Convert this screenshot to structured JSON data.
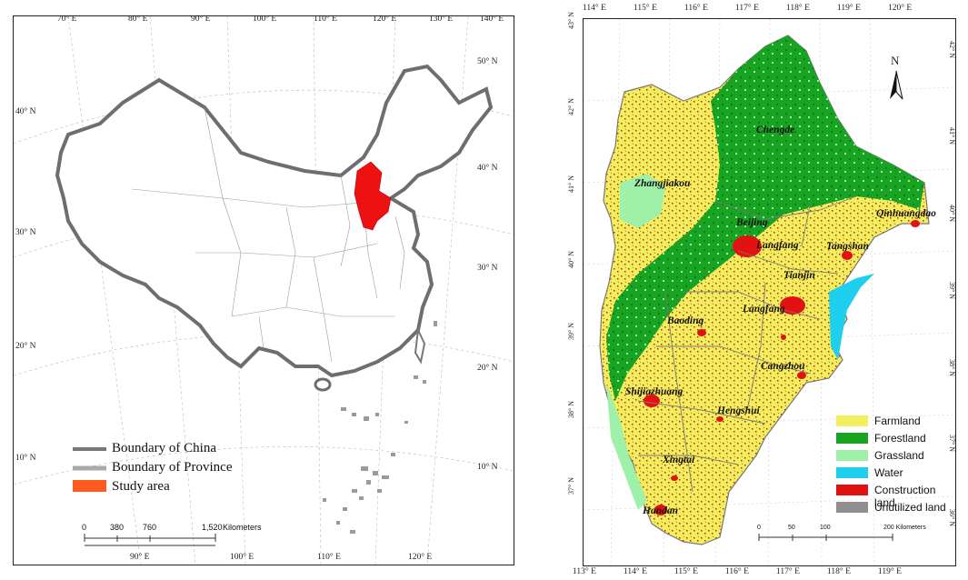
{
  "left_map": {
    "top_lon_ticks": [
      "70° E",
      "80° E",
      "90° E",
      "100° E",
      "110° E",
      "120° E",
      "130° E",
      "140° E"
    ],
    "bottom_lon_ticks": [
      "90° E",
      "100° E",
      "110° E",
      "120° E"
    ],
    "left_lat_ticks": [
      "40° N",
      "30° N",
      "20° N",
      "10° N"
    ],
    "right_lat_ticks": [
      "50° N",
      "40° N",
      "30° N",
      "20° N",
      "10° N"
    ],
    "legend": [
      {
        "label": "Boundary of China",
        "color": "#777777"
      },
      {
        "label": "Boundary of Province",
        "color": "#aaaaaa"
      },
      {
        "label": "Study area",
        "color": "#ff5a1f"
      }
    ],
    "scale": {
      "ticks": [
        "0",
        "380",
        "760",
        "1,520"
      ],
      "unit": "Kilometers"
    },
    "study_area_color": "#ee1111"
  },
  "right_map": {
    "top_lon_ticks": [
      "114° E",
      "115° E",
      "116° E",
      "117° E",
      "118° E",
      "119° E",
      "120° E"
    ],
    "bottom_lon_ticks": [
      "113° E",
      "114° E",
      "115° E",
      "116° E",
      "117° E",
      "118° E",
      "119° E"
    ],
    "left_lat_ticks": [
      "43° N",
      "42° N",
      "41° N",
      "40° N",
      "39° N",
      "38° N",
      "37° N"
    ],
    "right_lat_ticks": [
      "42° N",
      "41° N",
      "40° N",
      "39° N",
      "38° N",
      "37° N",
      "36° N"
    ],
    "north_arrow": "N",
    "cities": [
      "Chengde",
      "Zhangjiakou",
      "Qinhuangdao",
      "Beijing",
      "Langfang",
      "Tangshan",
      "Tianjin",
      "Langfang",
      "Baoding",
      "Cangzhou",
      "Shijiazhuang",
      "Hengshui",
      "Xingtai",
      "Handan"
    ],
    "legend": [
      {
        "label": "Farmland",
        "color": "#f2ef5f"
      },
      {
        "label": "Forestland",
        "color": "#18a323"
      },
      {
        "label": "Grassland",
        "color": "#9ff0a8"
      },
      {
        "label": "Water",
        "color": "#1fd0ee"
      },
      {
        "label": "Construction land",
        "color": "#e31212"
      },
      {
        "label": "Unutilized land",
        "color": "#8f8f8f"
      }
    ],
    "scale": {
      "ticks": [
        "0",
        "50",
        "100",
        "200 Kilometers"
      ]
    }
  }
}
